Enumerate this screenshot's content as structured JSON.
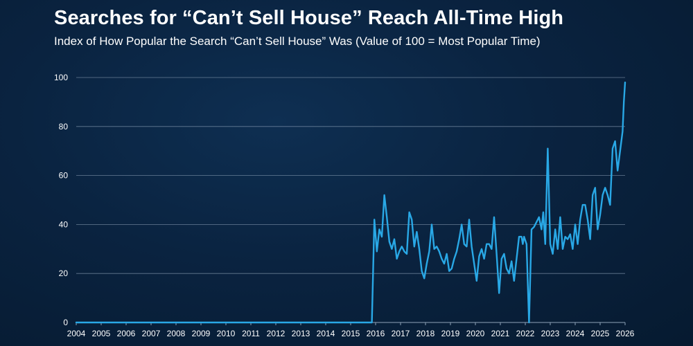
{
  "title": "Searches for “Can’t Sell House” Reach All-Time High",
  "subtitle": "Index of How Popular the Search “Can’t Sell House” Was (Value of 100 = Most Popular Time)",
  "colors": {
    "line": "#29a8e6",
    "gridline": "#8fa3b8",
    "text": "#ffffff",
    "background": "#0a2340"
  },
  "chart_data": {
    "type": "line",
    "title": "Searches for “Can’t Sell House” Reach All-Time High",
    "subtitle": "Index of How Popular the Search “Can’t Sell House” Was (Value of 100 = Most Popular Time)",
    "xlabel": "",
    "ylabel": "",
    "xlim": [
      2004,
      2026
    ],
    "ylim": [
      0,
      100
    ],
    "grid": true,
    "legend": "none",
    "y_ticks": [
      0,
      20,
      40,
      60,
      80,
      100
    ],
    "x_ticks": [
      "2004",
      "2005",
      "2006",
      "2007",
      "2008",
      "2009",
      "2010",
      "2011",
      "2012",
      "2013",
      "2014",
      "2015",
      "2016",
      "2017",
      "2018",
      "2019",
      "2020",
      "2021",
      "2022",
      "2023",
      "2024",
      "2025",
      "2026"
    ],
    "series": [
      {
        "x": [
          2004.0,
          2015.85,
          2015.95,
          2016.05,
          2016.15,
          2016.25,
          2016.35,
          2016.45,
          2016.55,
          2016.65,
          2016.75,
          2016.85,
          2016.95,
          2017.05,
          2017.15,
          2017.25,
          2017.35,
          2017.45,
          2017.55,
          2017.65,
          2017.75,
          2017.85,
          2017.95,
          2018.05,
          2018.15,
          2018.25,
          2018.35,
          2018.45,
          2018.55,
          2018.65,
          2018.75,
          2018.85,
          2018.95,
          2019.05,
          2019.15,
          2019.25,
          2019.35,
          2019.45,
          2019.55,
          2019.65,
          2019.75,
          2019.85,
          2019.95,
          2020.05,
          2020.15,
          2020.25,
          2020.35,
          2020.45,
          2020.55,
          2020.65,
          2020.75,
          2020.85,
          2020.95,
          2021.05,
          2021.15,
          2021.25,
          2021.35,
          2021.45,
          2021.55,
          2021.65,
          2021.75,
          2021.85,
          2021.9,
          2021.95,
          2022.05,
          2022.15,
          2022.25,
          2022.35,
          2022.45,
          2022.55,
          2022.65,
          2022.72,
          2022.8,
          2022.9,
          2023.0,
          2023.1,
          2023.2,
          2023.3,
          2023.4,
          2023.5,
          2023.6,
          2023.7,
          2023.8,
          2023.9,
          2024.0,
          2024.1,
          2024.2,
          2024.3,
          2024.4,
          2024.5,
          2024.6,
          2024.7,
          2024.8,
          2024.9,
          2025.0,
          2025.1,
          2025.2,
          2025.3,
          2025.4,
          2025.5,
          2025.6,
          2025.7,
          2025.8,
          2025.9,
          2025.95,
          2026.0
        ],
        "y": [
          0,
          0,
          42,
          29,
          38,
          35,
          52,
          43,
          33,
          30,
          34,
          26,
          29,
          31,
          29,
          28,
          45,
          42,
          31,
          37,
          30,
          21,
          18,
          24,
          29,
          40,
          30,
          31,
          29,
          26,
          24,
          28,
          21,
          22,
          26,
          29,
          34,
          40,
          32,
          31,
          42,
          31,
          24,
          17,
          27,
          30,
          26,
          32,
          32,
          30,
          43,
          28,
          12,
          26,
          28,
          22,
          20,
          25,
          17,
          26,
          35,
          35,
          32,
          35,
          32,
          0,
          38,
          39,
          41,
          43,
          38,
          45,
          32,
          71,
          32,
          28,
          38,
          30,
          43,
          30,
          35,
          34,
          36,
          30,
          40,
          32,
          42,
          48,
          48,
          42,
          34,
          52,
          55,
          38,
          44,
          52,
          55,
          52,
          48,
          71,
          74,
          62,
          70,
          78,
          90,
          98
        ]
      }
    ]
  }
}
